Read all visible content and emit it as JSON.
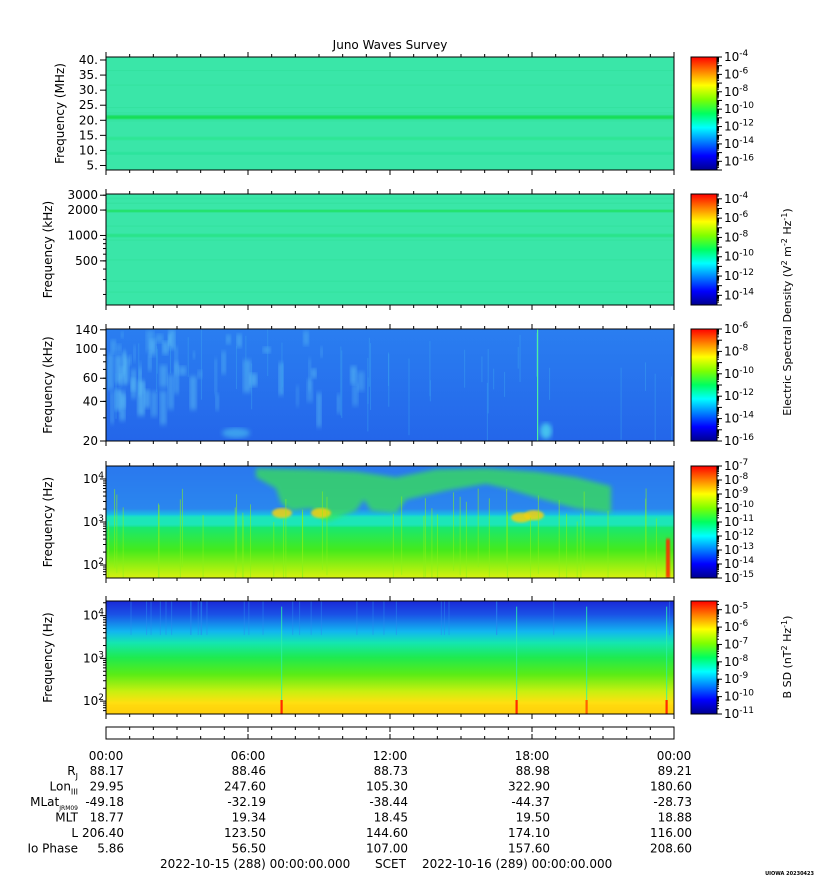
{
  "title": "Juno Waves Survey",
  "chart_data": {
    "type": "heatmap",
    "panels": [
      {
        "ylabel": "Frequency (MHz)",
        "scale": "linear",
        "ylim": [
          3.5,
          41
        ],
        "yticks": [
          {
            "v": 40,
            "label": "40."
          },
          {
            "v": 35,
            "label": "35."
          },
          {
            "v": 30,
            "label": "30."
          },
          {
            "v": 25,
            "label": "25."
          },
          {
            "v": 20,
            "label": "20."
          },
          {
            "v": 15,
            "label": "15."
          },
          {
            "v": 10,
            "label": "10."
          },
          {
            "v": 5,
            "label": "5."
          }
        ],
        "colorbar": {
          "min_exp": -17,
          "max_exp": -4,
          "labels": [
            -4,
            -6,
            -8,
            -10,
            -12,
            -14,
            -16
          ]
        },
        "bands": [
          {
            "f": 21,
            "width": 1.2,
            "color": "#10dc48"
          },
          {
            "f": 14,
            "width": 1.0,
            "color": "#2be68e"
          },
          {
            "f": 9,
            "width": 0.8,
            "color": "#28e296"
          }
        ],
        "base_color": "#3ae6a8"
      },
      {
        "ylabel": "Frequency (kHz)",
        "scale": "log",
        "ylim": [
          150,
          3100
        ],
        "yticks": [
          {
            "v": 3000,
            "label": "3000"
          },
          {
            "v": 2000,
            "label": "2000"
          },
          {
            "v": 1000,
            "label": "1000"
          },
          {
            "v": 500,
            "label": "500"
          }
        ],
        "colorbar": {
          "min_exp": -15,
          "max_exp": -3.5,
          "labels": [
            -4,
            -6,
            -8,
            -10,
            -12,
            -14
          ]
        },
        "bands": [
          {
            "f": 1950,
            "width": 120,
            "color": "#18de4a"
          },
          {
            "f": 1000,
            "width": 70,
            "color": "#22e27a"
          },
          {
            "f": 2750,
            "width": 100,
            "color": "#2ee29a"
          }
        ],
        "base_color": "#3ae6a8"
      },
      {
        "ylabel": "Frequency (kHz)",
        "scale": "log",
        "ylim": [
          20,
          142
        ],
        "yticks": [
          {
            "v": 140,
            "label": "140"
          },
          {
            "v": 100,
            "label": "100"
          },
          {
            "v": 60,
            "label": "60"
          },
          {
            "v": 40,
            "label": "40"
          },
          {
            "v": 20,
            "label": "20"
          }
        ],
        "colorbar": {
          "min_exp": -16,
          "max_exp": -6,
          "labels": [
            -6,
            -8,
            -10,
            -12,
            -14,
            -16
          ]
        },
        "base_color": "#2470ec"
      },
      {
        "ylabel": "Frequency (Hz)",
        "scale": "log",
        "ylim": [
          50,
          20000
        ],
        "yticks": [
          {
            "v": 10000,
            "label": "10",
            "sup": "4"
          },
          {
            "v": 1000,
            "label": "10",
            "sup": "3"
          },
          {
            "v": 100,
            "label": "10",
            "sup": "2"
          }
        ],
        "colorbar": {
          "min_exp": -15,
          "max_exp": -7,
          "labels": [
            -7,
            -8,
            -9,
            -10,
            -11,
            -12,
            -13,
            -14,
            -15
          ]
        },
        "base_color": "#2a74ea"
      },
      {
        "ylabel": "Frequency (Hz)",
        "scale": "log",
        "ylim": [
          50,
          22000
        ],
        "yticks": [
          {
            "v": 10000,
            "label": "10",
            "sup": "4"
          },
          {
            "v": 1000,
            "label": "10",
            "sup": "3"
          },
          {
            "v": 100,
            "label": "10",
            "sup": "2"
          }
        ],
        "colorbar": {
          "min_exp": -11,
          "max_exp": -4.5,
          "labels": [
            -5,
            -6,
            -7,
            -8,
            -9,
            -10,
            -11
          ]
        },
        "base_color": "#1a40e0"
      }
    ],
    "colorbar_titles": {
      "electric": {
        "text": "Electric Spectral Density (V",
        "sup1": "2",
        "mid": " m",
        "sup2": "-2",
        "mid2": " Hz",
        "sup3": "-1",
        "end": ")"
      },
      "magnetic": {
        "text": "B SD (nT",
        "sup1": "2",
        "mid": " Hz",
        "sup2": "-1",
        "end": ")"
      }
    },
    "colorbar_base": "10",
    "x_ticks": [
      "00:00",
      "06:00",
      "12:00",
      "18:00",
      "00:00"
    ],
    "ephemeris": [
      {
        "label": "R",
        "sub": "J",
        "values": [
          "88.17",
          "88.46",
          "88.73",
          "88.98",
          "89.21"
        ]
      },
      {
        "label": "Lon",
        "sub": "III",
        "values": [
          "29.95",
          "247.60",
          "105.30",
          "322.90",
          "180.60"
        ]
      },
      {
        "label": "MLat",
        "sub": "JRM09",
        "values": [
          "-49.18",
          "-32.19",
          "-38.44",
          "-44.37",
          "-28.73"
        ]
      },
      {
        "label": "MLT",
        "sub": "",
        "values": [
          "18.77",
          "19.34",
          "18.45",
          "19.50",
          "18.88"
        ]
      },
      {
        "label": "L",
        "sub": "",
        "values": [
          "206.40",
          "123.50",
          "144.60",
          "174.10",
          "116.00"
        ]
      },
      {
        "label": "Io Phase",
        "sub": "",
        "values": [
          "5.86",
          "56.50",
          "107.00",
          "157.60",
          "208.60"
        ]
      }
    ],
    "time_range": {
      "start": "2022-10-15 (288) 00:00:00.000",
      "label": "SCET",
      "end": "2022-10-16 (289) 00:00:00.000"
    },
    "footer": "UIOWA 20230423"
  }
}
